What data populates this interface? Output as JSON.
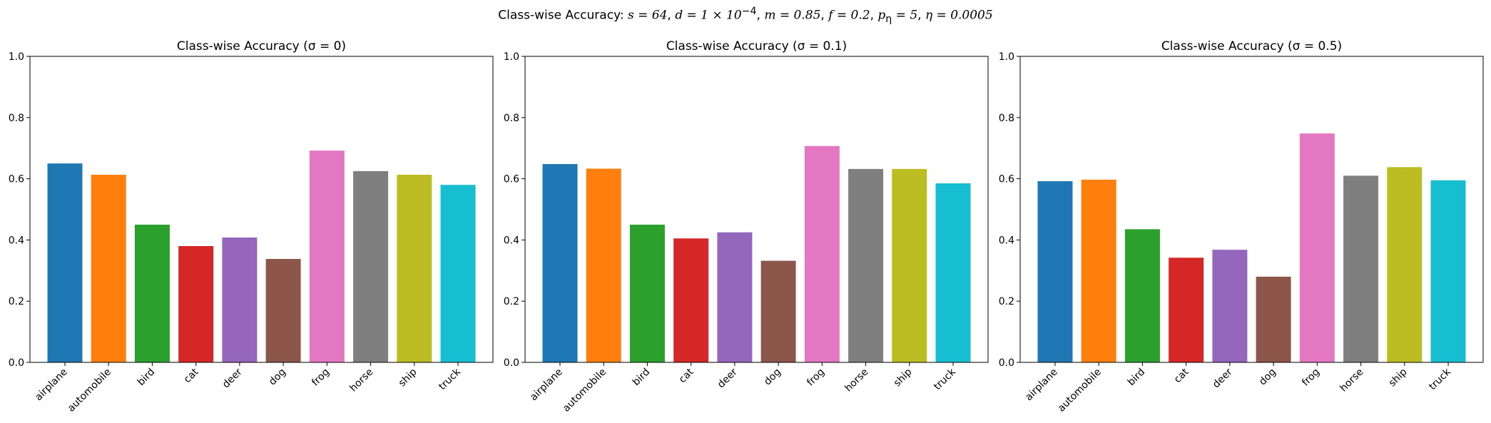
{
  "suptitle": {
    "prefix": "Class-wise Accuracy: ",
    "s": "s = 64",
    "d": "d = 1 × 10",
    "d_exp": "−4",
    "m": "m = 0.85",
    "f": "f = 0.2",
    "p": "p",
    "p_sub": "η",
    "p_val": " = 5",
    "eta": "η = 0.0005",
    "sep": ", "
  },
  "colors": [
    "#1f77b4",
    "#ff7f0e",
    "#2ca02c",
    "#d62728",
    "#9467bd",
    "#8c564b",
    "#e377c2",
    "#7f7f7f",
    "#bcbd22",
    "#17becf"
  ],
  "chart_data": [
    {
      "type": "bar",
      "title": "Class-wise Accuracy (σ = 0)",
      "categories": [
        "airplane",
        "automobile",
        "bird",
        "cat",
        "deer",
        "dog",
        "frog",
        "horse",
        "ship",
        "truck"
      ],
      "values": [
        0.65,
        0.613,
        0.45,
        0.38,
        0.408,
        0.338,
        0.692,
        0.625,
        0.613,
        0.58
      ],
      "ylim": [
        0,
        1.0
      ],
      "yticks": [
        "0.0",
        "0.2",
        "0.4",
        "0.6",
        "0.8",
        "1.0"
      ],
      "xlabel": "",
      "ylabel": "",
      "grid": false
    },
    {
      "type": "bar",
      "title": "Class-wise Accuracy (σ = 0.1)",
      "categories": [
        "airplane",
        "automobile",
        "bird",
        "cat",
        "deer",
        "dog",
        "frog",
        "horse",
        "ship",
        "truck"
      ],
      "values": [
        0.648,
        0.633,
        0.45,
        0.405,
        0.425,
        0.332,
        0.707,
        0.632,
        0.632,
        0.585
      ],
      "ylim": [
        0,
        1.0
      ],
      "yticks": [
        "0.0",
        "0.2",
        "0.4",
        "0.6",
        "0.8",
        "1.0"
      ],
      "xlabel": "",
      "ylabel": "",
      "grid": false
    },
    {
      "type": "bar",
      "title": "Class-wise Accuracy (σ = 0.5)",
      "categories": [
        "airplane",
        "automobile",
        "bird",
        "cat",
        "deer",
        "dog",
        "frog",
        "horse",
        "ship",
        "truck"
      ],
      "values": [
        0.592,
        0.597,
        0.435,
        0.342,
        0.368,
        0.28,
        0.748,
        0.61,
        0.638,
        0.595
      ],
      "ylim": [
        0,
        1.0
      ],
      "yticks": [
        "0.0",
        "0.2",
        "0.4",
        "0.6",
        "0.8",
        "1.0"
      ],
      "xlabel": "",
      "ylabel": "",
      "grid": false
    }
  ]
}
